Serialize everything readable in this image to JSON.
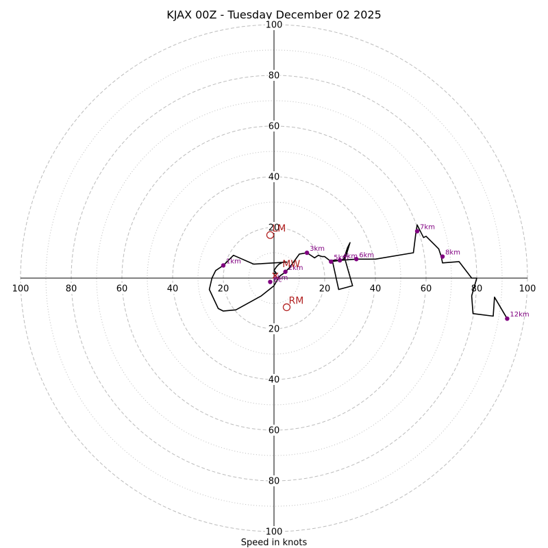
{
  "chart_data": {
    "type": "hodograph",
    "title": "KJAX 00Z - Tuesday December 02 2025",
    "xlabel": "Speed in knots",
    "range_max": 100,
    "ring_step": 10,
    "tick_values": [
      20,
      40,
      60,
      80,
      100
    ],
    "colors": {
      "trace": "#000000",
      "height_marker": "#800080",
      "motion_marker": "#b22222",
      "ring": "#bbbbbb",
      "axis": "#000000"
    },
    "profile": [
      {
        "u": 0,
        "v": 1.5
      },
      {
        "u": 0.5,
        "v": 2
      },
      {
        "u": 1,
        "v": 1.8
      },
      {
        "u": 0.5,
        "v": 2.5
      },
      {
        "u": 0,
        "v": 3
      },
      {
        "u": 1,
        "v": 4.5
      },
      {
        "u": 2,
        "v": 5.5
      },
      {
        "u": 3,
        "v": 6
      },
      {
        "u": 4,
        "v": 6.5
      },
      {
        "u": 5,
        "v": 6.3
      },
      {
        "u": -8,
        "v": 5.5
      },
      {
        "u": -16,
        "v": 9
      },
      {
        "u": -20,
        "v": 5
      },
      {
        "u": -23,
        "v": 3
      },
      {
        "u": -24.5,
        "v": 0
      },
      {
        "u": -25.5,
        "v": -4.5
      },
      {
        "u": -22,
        "v": -12
      },
      {
        "u": -20,
        "v": -13
      },
      {
        "u": -15,
        "v": -12.5
      },
      {
        "u": -5,
        "v": -7
      },
      {
        "u": 0,
        "v": -3
      },
      {
        "u": 2,
        "v": 0.5
      },
      {
        "u": 2.5,
        "v": 1
      },
      {
        "u": 4,
        "v": 2
      },
      {
        "u": 6,
        "v": 4
      },
      {
        "u": 10,
        "v": 9.5
      },
      {
        "u": 13,
        "v": 10
      },
      {
        "u": 16,
        "v": 8
      },
      {
        "u": 17.5,
        "v": 9
      },
      {
        "u": 19,
        "v": 8.5
      },
      {
        "u": 20,
        "v": 8.5
      },
      {
        "u": 22.5,
        "v": 6.5
      },
      {
        "u": 26,
        "v": 7
      },
      {
        "u": 27.5,
        "v": 7.5
      },
      {
        "u": 29,
        "v": 12
      },
      {
        "u": 30,
        "v": 14
      },
      {
        "u": 28,
        "v": 7.5
      },
      {
        "u": 31,
        "v": -3
      },
      {
        "u": 25.5,
        "v": -4.5
      },
      {
        "u": 23,
        "v": 7
      },
      {
        "u": 26,
        "v": 7
      },
      {
        "u": 32.5,
        "v": 7.5
      },
      {
        "u": 40,
        "v": 7.5
      },
      {
        "u": 55,
        "v": 10
      },
      {
        "u": 56,
        "v": 18
      },
      {
        "u": 56.5,
        "v": 21
      },
      {
        "u": 59,
        "v": 16
      },
      {
        "u": 60,
        "v": 16.5
      },
      {
        "u": 65,
        "v": 11.5
      },
      {
        "u": 66,
        "v": 8.5
      },
      {
        "u": 66.5,
        "v": 6
      },
      {
        "u": 73,
        "v": 6.5
      },
      {
        "u": 78,
        "v": 0
      },
      {
        "u": 80,
        "v": 0
      },
      {
        "u": 78,
        "v": -7
      },
      {
        "u": 78.5,
        "v": -14
      },
      {
        "u": 86.5,
        "v": -15
      },
      {
        "u": 87,
        "v": -7.5
      },
      {
        "u": 92,
        "v": -16
      }
    ],
    "height_markers": [
      {
        "label": "0km",
        "u": -1.5,
        "v": -1.5
      },
      {
        "label": "1km",
        "u": -20,
        "v": 5
      },
      {
        "label": "2km",
        "u": 4.5,
        "v": 2.5
      },
      {
        "label": "3km",
        "u": 13,
        "v": 10
      },
      {
        "label": "4km",
        "u": 26,
        "v": 7
      },
      {
        "label": "5km",
        "u": 22.5,
        "v": 6.5
      },
      {
        "label": "6km",
        "u": 32.5,
        "v": 7.5
      },
      {
        "label": "7km",
        "u": 56.5,
        "v": 18.5
      },
      {
        "label": "8km",
        "u": 66.5,
        "v": 8.5
      },
      {
        "label": "12km",
        "u": 92,
        "v": -16
      }
    ],
    "storm_motion": [
      {
        "label": "LM",
        "u": -1.5,
        "v": 17
      },
      {
        "label": "RM",
        "u": 5,
        "v": -11.5
      },
      {
        "label": "MW",
        "u": 2.5,
        "v": 3
      }
    ],
    "surface_label": "Ec",
    "surface_point": {
      "u": 0.5,
      "v": 1
    }
  }
}
